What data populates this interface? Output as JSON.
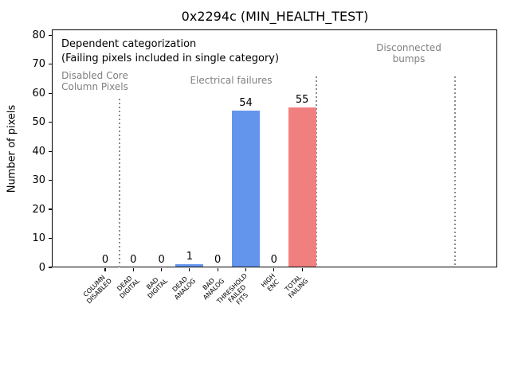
{
  "chart_data": {
    "type": "bar",
    "title": "0x2294c (MIN_HEALTH_TEST)",
    "xlabel": "",
    "ylabel": "Number of pixels",
    "ylim": [
      0,
      82
    ],
    "yticks": [
      0,
      10,
      20,
      30,
      40,
      50,
      60,
      70,
      80
    ],
    "grid": false,
    "legend": "none",
    "categories": [
      "COLUMN\nDISABLED",
      "DEAD\nDIGITAL",
      "BAD\nDIGITAL",
      "DEAD\nANALOG",
      "BAD\nANALOG",
      "THRESHOLD\nFAILED\nFITS",
      "HIGH\nENC",
      "TOTAL\nFAILING"
    ],
    "values": [
      0,
      0,
      0,
      1,
      0,
      54,
      0,
      55
    ],
    "bar_value_labels": [
      "0",
      "0",
      "0",
      "1",
      "0",
      "54",
      "0",
      "55"
    ],
    "bar_colors": [
      "#6495ED",
      "#6495ED",
      "#6495ED",
      "#6495ED",
      "#6495ED",
      "#6495ED",
      "#6495ED",
      "#F08080"
    ],
    "annotations": [
      {
        "text": "Dependent categorization",
        "color": "#000000"
      },
      {
        "text": "(Failing pixels included in single category)",
        "color": "#000000"
      }
    ],
    "section_labels": [
      {
        "text": "Disabled Core\nColumn Pixels",
        "color": "#808080"
      },
      {
        "text": "Electrical failures",
        "color": "#808080"
      },
      {
        "text": "Disconnected\nbumps",
        "color": "#808080"
      }
    ],
    "section_divider_positions_units": [
      0.5,
      7.5,
      12.45
    ],
    "divider_color": "#8c8c8c",
    "divider_style": "dotted"
  },
  "colors": {
    "bar_blue": "#6495ED",
    "bar_red": "#F08080",
    "section_text_gray": "#808080",
    "axis_black": "#000000"
  }
}
